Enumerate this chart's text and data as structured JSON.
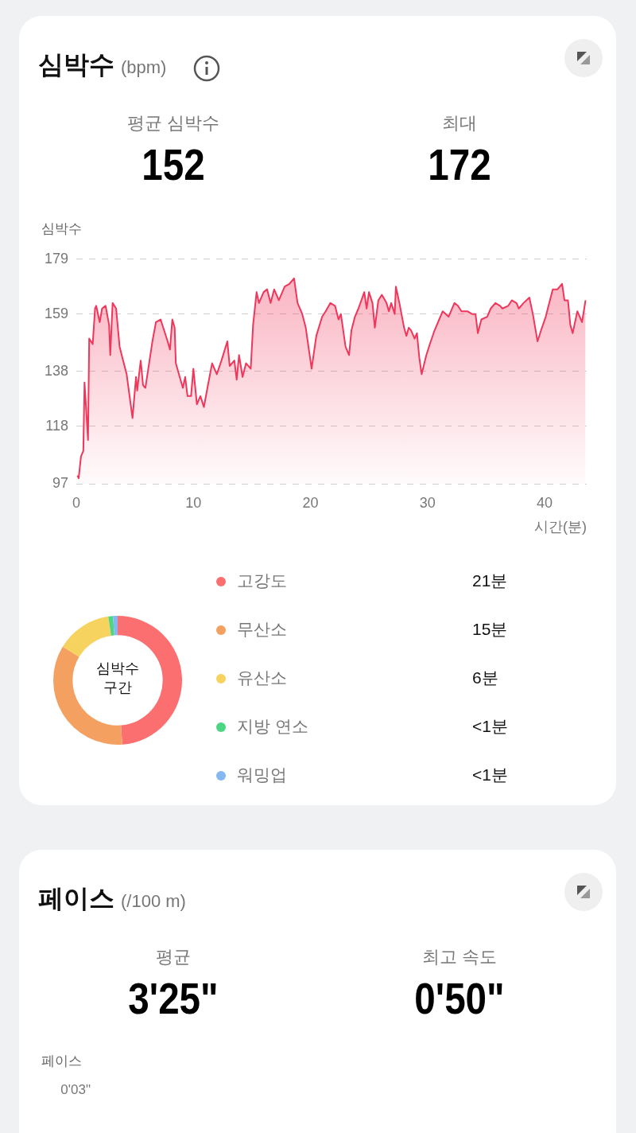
{
  "chart_data": [
    {
      "type": "area",
      "title": "심박수",
      "subtitle": "(bpm)",
      "ylabel": "심박수",
      "xlabel": "시간(분)",
      "annotations": [
        "평균 심박수",
        "152",
        "최대",
        "172"
      ],
      "xlim": [
        0,
        43.6
      ],
      "xticks": [
        0,
        10,
        20,
        30,
        40
      ],
      "ylim": [
        97,
        179
      ],
      "yticks": [
        97,
        118,
        138,
        159,
        179
      ],
      "grid": "y",
      "legend": false,
      "marker": "none",
      "series": [
        {
          "color": "#f0365a",
          "x": [
            0.1,
            0.2,
            0.4,
            0.6,
            0.7,
            1.0,
            1.1,
            1.4,
            1.6,
            1.7,
            2.0,
            2.2,
            2.5,
            2.8,
            2.9,
            3.1,
            3.4,
            3.7,
            4.0,
            4.3,
            4.8,
            5.1,
            5.2,
            5.5,
            5.7,
            5.9,
            6.5,
            6.8,
            7.2,
            7.5,
            7.8,
            8.0,
            8.2,
            8.4,
            8.5,
            8.9,
            9.1,
            9.3,
            9.5,
            9.8,
            10.0,
            10.3,
            10.6,
            10.9,
            11.2,
            11.6,
            12.0,
            12.4,
            12.9,
            13.1,
            13.5,
            13.7,
            13.9,
            14.2,
            14.5,
            14.9,
            15.1,
            15.4,
            15.6,
            16.0,
            16.3,
            16.6,
            16.9,
            17.3,
            17.8,
            18.2,
            18.6,
            18.9,
            19.3,
            19.6,
            19.9,
            20.1,
            20.5,
            21.0,
            21.3,
            21.7,
            22.1,
            22.4,
            22.6,
            23.0,
            23.3,
            23.5,
            23.8,
            24.1,
            24.6,
            24.8,
            25.0,
            25.3,
            25.5,
            25.8,
            26.1,
            26.5,
            26.7,
            26.9,
            27.2,
            27.3,
            27.6,
            28.0,
            28.2,
            28.4,
            28.6,
            28.9,
            29.1,
            29.3,
            29.5,
            29.9,
            30.2,
            30.6,
            31.0,
            31.3,
            31.8,
            32.3,
            32.6,
            32.9,
            33.4,
            33.8,
            34.1,
            34.3,
            34.6,
            35.1,
            35.4,
            35.8,
            36.2,
            36.4,
            36.9,
            37.2,
            37.6,
            37.8,
            38.2,
            38.7,
            39.0,
            39.4,
            39.7,
            40.1,
            40.4,
            40.7,
            41.1,
            41.5,
            41.7,
            42.0,
            42.2,
            42.4,
            42.8,
            43.2,
            43.5
          ],
          "values": [
            100,
            99,
            107,
            109,
            134,
            113,
            150,
            148,
            161,
            162,
            156,
            161,
            162,
            155,
            144,
            163,
            161,
            147,
            142,
            137,
            121,
            136,
            131,
            142,
            133,
            132,
            149,
            156,
            157,
            153,
            149,
            146,
            157,
            154,
            141,
            135,
            132,
            136,
            129,
            129,
            139,
            126,
            129,
            125,
            132,
            141,
            137,
            142,
            149,
            140,
            142,
            135,
            144,
            136,
            141,
            139,
            155,
            167,
            163,
            167,
            168,
            163,
            168,
            164,
            169,
            170,
            172,
            163,
            159,
            154,
            145,
            139,
            151,
            158,
            160,
            163,
            162,
            157,
            159,
            147,
            144,
            153,
            158,
            161,
            167,
            161,
            167,
            163,
            154,
            164,
            166,
            163,
            160,
            163,
            159,
            169,
            163,
            154,
            151,
            154,
            153,
            150,
            152,
            143,
            137,
            144,
            148,
            153,
            157,
            160,
            158,
            163,
            162,
            160,
            160,
            159,
            159,
            152,
            157,
            158,
            161,
            163,
            162,
            161,
            162,
            164,
            163,
            161,
            163,
            165,
            159,
            149,
            153,
            158,
            163,
            168,
            168,
            170,
            164,
            164,
            155,
            152,
            160,
            156,
            164
          ]
        }
      ]
    },
    {
      "type": "donut",
      "title": "심박수 구간",
      "legend": "right",
      "categories": [
        "고강도",
        "무산소",
        "유산소",
        "지방 연소",
        "워밍업"
      ],
      "values": [
        21,
        15,
        6,
        0.5,
        0.5
      ],
      "value_labels": [
        "21분",
        "15분",
        "6분",
        "<1분",
        "<1분"
      ],
      "colors": [
        "#fb6f70",
        "#f4a060",
        "#f6d35e",
        "#4cd582",
        "#85b7f0"
      ]
    },
    {
      "type": "other",
      "title": "페이스",
      "subtitle": "(/100 m)",
      "ylabel": "페이스",
      "annotations": [
        "평균",
        "3'25\"",
        "최고 속도",
        "0'50\"",
        "0'03\""
      ]
    }
  ]
}
